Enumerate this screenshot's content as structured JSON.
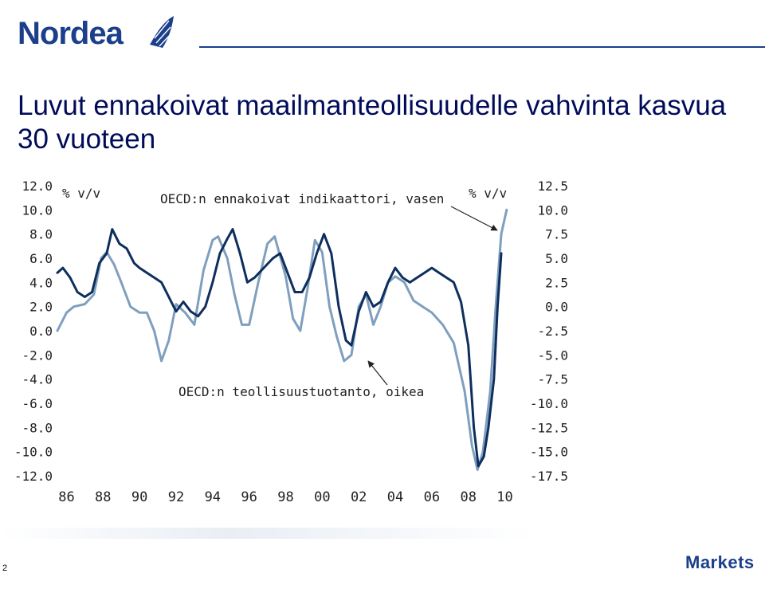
{
  "brand": {
    "logo_text": "Nordea",
    "logo_color": "#1b3f8b",
    "footer_brand": "Markets",
    "page_number": "2"
  },
  "slide": {
    "title": "Luvut ennakoivat maailmanteollisuudelle vahvinta kasvua 30 vuoteen"
  },
  "chart_data": {
    "type": "line",
    "x": [
      "86",
      "88",
      "90",
      "92",
      "94",
      "96",
      "98",
      "00",
      "02",
      "04",
      "06",
      "08",
      "10"
    ],
    "xlabel": "",
    "left_axis": {
      "unit": "% v/v",
      "ticks": [
        "12.0",
        "10.0",
        "8.0",
        "6.0",
        "4.0",
        "2.0",
        "0.0",
        "-2.0",
        "-4.0",
        "-6.0",
        "-8.0",
        "-10.0",
        "-12.0"
      ],
      "ylim": [
        -12,
        12
      ]
    },
    "right_axis": {
      "unit": "% v/v",
      "ticks": [
        "12.5",
        "10.0",
        "7.5",
        "5.0",
        "2.5",
        "0.0",
        "-2.5",
        "-5.0",
        "-7.5",
        "-10.0",
        "-12.5",
        "-15.0",
        "-17.5"
      ],
      "ylim": [
        -17.5,
        12.5
      ]
    },
    "annotations": [
      "OECD:n ennakoivat indikaattori, vasen",
      "OECD:n teollisuustuotanto, oikea"
    ],
    "series": [
      {
        "name": "OECD:n ennakoivat indikaattori, vasen",
        "axis": "left",
        "color": "#7f9fbe",
        "points": [
          [
            1985.5,
            0.0
          ],
          [
            1986.0,
            1.5
          ],
          [
            1986.4,
            2.0
          ],
          [
            1987.0,
            2.2
          ],
          [
            1987.5,
            3.0
          ],
          [
            1987.9,
            6.0
          ],
          [
            1988.2,
            6.5
          ],
          [
            1988.6,
            5.5
          ],
          [
            1989.0,
            4.0
          ],
          [
            1989.5,
            2.0
          ],
          [
            1990.0,
            1.5
          ],
          [
            1990.4,
            1.5
          ],
          [
            1990.8,
            0.0
          ],
          [
            1991.2,
            -2.5
          ],
          [
            1991.6,
            -0.8
          ],
          [
            1992.0,
            2.2
          ],
          [
            1992.5,
            1.5
          ],
          [
            1993.0,
            0.5
          ],
          [
            1993.5,
            5.0
          ],
          [
            1994.0,
            7.5
          ],
          [
            1994.3,
            7.8
          ],
          [
            1994.8,
            6.0
          ],
          [
            1995.2,
            3.0
          ],
          [
            1995.6,
            0.5
          ],
          [
            1996.0,
            0.5
          ],
          [
            1996.5,
            4.0
          ],
          [
            1997.0,
            7.2
          ],
          [
            1997.4,
            7.8
          ],
          [
            1998.0,
            4.5
          ],
          [
            1998.4,
            1.0
          ],
          [
            1998.8,
            0.0
          ],
          [
            1999.2,
            3.5
          ],
          [
            1999.6,
            7.5
          ],
          [
            2000.0,
            6.5
          ],
          [
            2000.4,
            2.0
          ],
          [
            2000.8,
            -0.5
          ],
          [
            2001.2,
            -2.5
          ],
          [
            2001.6,
            -2.0
          ],
          [
            2002.0,
            2.0
          ],
          [
            2002.4,
            3.0
          ],
          [
            2002.8,
            0.5
          ],
          [
            2003.2,
            2.0
          ],
          [
            2003.6,
            4.0
          ],
          [
            2004.0,
            4.5
          ],
          [
            2004.5,
            4.0
          ],
          [
            2005.0,
            2.5
          ],
          [
            2005.5,
            2.0
          ],
          [
            2006.0,
            1.5
          ],
          [
            2006.6,
            0.5
          ],
          [
            2007.2,
            -1.0
          ],
          [
            2007.8,
            -5.0
          ],
          [
            2008.2,
            -9.5
          ],
          [
            2008.5,
            -11.5
          ],
          [
            2008.8,
            -10.0
          ],
          [
            2009.2,
            -5.0
          ],
          [
            2009.5,
            2.0
          ],
          [
            2009.8,
            8.0
          ],
          [
            2010.1,
            10.0
          ]
        ]
      },
      {
        "name": "OECD:n teollisuustuotanto, oikea",
        "axis": "right",
        "color": "#0e2e5e",
        "points": [
          [
            1985.5,
            3.5
          ],
          [
            1985.8,
            4.0
          ],
          [
            1986.2,
            3.0
          ],
          [
            1986.6,
            1.5
          ],
          [
            1987.0,
            1.0
          ],
          [
            1987.4,
            1.5
          ],
          [
            1987.8,
            4.5
          ],
          [
            1988.2,
            5.5
          ],
          [
            1988.5,
            8.0
          ],
          [
            1988.9,
            6.5
          ],
          [
            1989.3,
            6.0
          ],
          [
            1989.7,
            4.5
          ],
          [
            1990.0,
            4.0
          ],
          [
            1990.4,
            3.5
          ],
          [
            1990.8,
            3.0
          ],
          [
            1991.2,
            2.5
          ],
          [
            1991.6,
            1.0
          ],
          [
            1992.0,
            -0.5
          ],
          [
            1992.4,
            0.5
          ],
          [
            1992.8,
            -0.5
          ],
          [
            1993.2,
            -1.0
          ],
          [
            1993.6,
            0.0
          ],
          [
            1994.0,
            2.5
          ],
          [
            1994.4,
            5.5
          ],
          [
            1994.8,
            7.0
          ],
          [
            1995.1,
            8.0
          ],
          [
            1995.5,
            5.5
          ],
          [
            1995.9,
            2.5
          ],
          [
            1996.3,
            3.0
          ],
          [
            1996.8,
            4.0
          ],
          [
            1997.3,
            5.0
          ],
          [
            1997.7,
            5.5
          ],
          [
            1998.1,
            3.5
          ],
          [
            1998.5,
            1.5
          ],
          [
            1998.9,
            1.5
          ],
          [
            1999.3,
            3.0
          ],
          [
            1999.7,
            5.5
          ],
          [
            2000.1,
            7.5
          ],
          [
            2000.5,
            5.5
          ],
          [
            2000.9,
            0.0
          ],
          [
            2001.3,
            -3.5
          ],
          [
            2001.6,
            -4.0
          ],
          [
            2002.0,
            -0.5
          ],
          [
            2002.4,
            1.5
          ],
          [
            2002.8,
            0.0
          ],
          [
            2003.2,
            0.5
          ],
          [
            2003.6,
            2.5
          ],
          [
            2004.0,
            4.0
          ],
          [
            2004.4,
            3.0
          ],
          [
            2004.8,
            2.5
          ],
          [
            2005.2,
            3.0
          ],
          [
            2005.6,
            3.5
          ],
          [
            2006.0,
            4.0
          ],
          [
            2006.4,
            3.5
          ],
          [
            2006.8,
            3.0
          ],
          [
            2007.2,
            2.5
          ],
          [
            2007.6,
            0.5
          ],
          [
            2008.0,
            -4.0
          ],
          [
            2008.3,
            -12.5
          ],
          [
            2008.55,
            -16.5
          ],
          [
            2008.85,
            -15.5
          ],
          [
            2009.1,
            -12.5
          ],
          [
            2009.4,
            -7.5
          ],
          [
            2009.6,
            0.0
          ],
          [
            2009.8,
            5.5
          ]
        ]
      }
    ]
  }
}
